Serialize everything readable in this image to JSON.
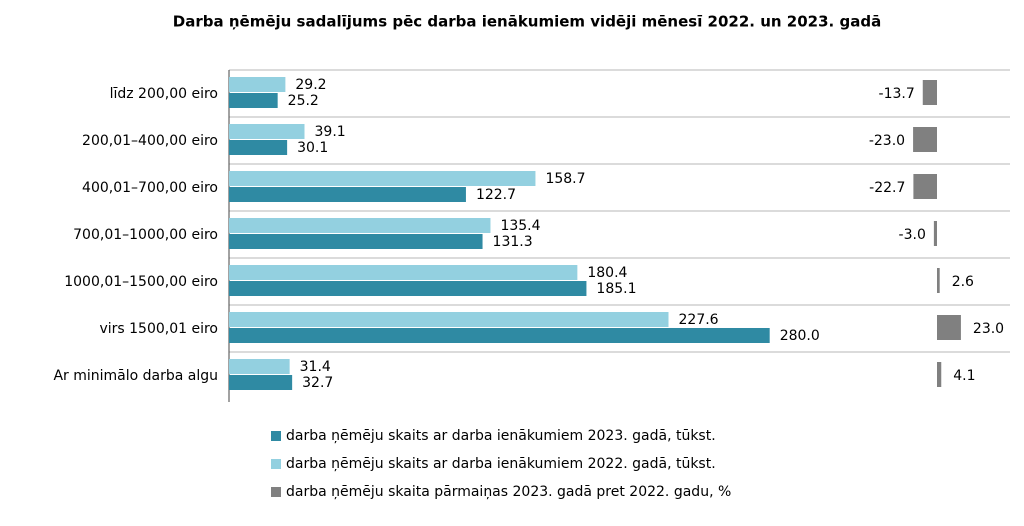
{
  "chart_data": {
    "type": "bar",
    "orientation": "horizontal",
    "title": "Darba ņēmēju sadalījums pēc darba ienākumiem vidēji mēnesī 2022. un 2023. gadā",
    "categories": [
      "līdz 200,00 eiro",
      "200,01–400,00 eiro",
      "400,01–700,00 eiro",
      "700,01–1000,00 eiro",
      "1000,01–1500,00 eiro",
      "virs 1500,01 eiro",
      "Ar minimālo darba algu"
    ],
    "series": [
      {
        "name": "darba ņēmēju skaits ar darba ienākumiem 2023. gadā, tūkst.",
        "color": "#2f8aa3",
        "values": [
          25.2,
          30.1,
          122.7,
          131.3,
          185.1,
          280.0,
          32.7
        ],
        "value_labels": [
          "25.2",
          "30.1",
          "122.7",
          "131.3",
          "185.1",
          "280.0",
          "32.7"
        ]
      },
      {
        "name": "darba ņēmēju skaits ar darba ienākumiem 2022. gadā, tūkst.",
        "color": "#93d0e0",
        "values": [
          29.2,
          39.1,
          158.7,
          135.4,
          180.4,
          227.6,
          31.4
        ],
        "value_labels": [
          "29.2",
          "39.1",
          "158.7",
          "135.4",
          "180.4",
          "227.6",
          "31.4"
        ]
      },
      {
        "name": "darba ņēmēju skaita pārmaiņas 2023. gadā pret 2022. gadu, %",
        "color": "#808080",
        "axis": "x2",
        "values": [
          -13.7,
          -23.0,
          -22.7,
          -3.0,
          2.6,
          23.0,
          4.1
        ],
        "value_labels": [
          "-13.7",
          "-23.0",
          "-22.7",
          "-3.0",
          "2.6",
          "23.0",
          "4.1"
        ]
      }
    ],
    "xlim": [
      0,
      290
    ],
    "x2lim": [
      -25,
      25
    ],
    "grid": true
  }
}
